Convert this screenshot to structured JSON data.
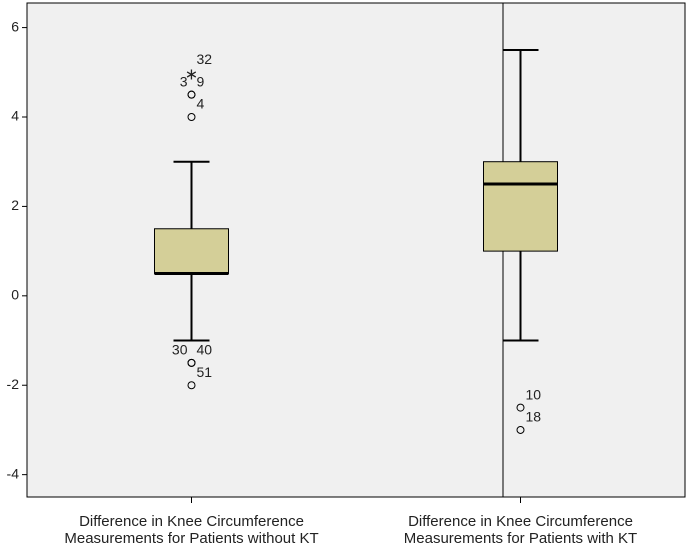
{
  "chart_data": {
    "type": "box",
    "categories": [
      [
        "Difference in Knee Circumference",
        "Measurements for Patients without KT"
      ],
      [
        "Difference in Knee Circumference",
        "Measurements for Patients with KT"
      ]
    ],
    "boxes": [
      {
        "whisker_low": -1,
        "q1": 0.5,
        "median": 0.5,
        "q3": 1.5,
        "whisker_high": 3,
        "outliers": [
          {
            "value": 5,
            "label": "32",
            "marker": "star"
          },
          {
            "value": 4.5,
            "label": "3",
            "marker": "circle"
          },
          {
            "value": 4.5,
            "label": "9",
            "marker": "circle"
          },
          {
            "value": 4,
            "label": "4",
            "marker": "circle"
          },
          {
            "value": -1.5,
            "label": "30",
            "marker": "circle"
          },
          {
            "value": -1.5,
            "label": "40",
            "marker": "circle"
          },
          {
            "value": -2,
            "label": "51",
            "marker": "circle"
          }
        ]
      },
      {
        "whisker_low": -1,
        "q1": 1,
        "median": 2.5,
        "q3": 3,
        "whisker_high": 5.5,
        "outliers": [
          {
            "value": -2.5,
            "label": "10",
            "marker": "circle"
          },
          {
            "value": -3,
            "label": "18",
            "marker": "circle"
          }
        ]
      }
    ],
    "color": "#d4cf98",
    "ylim": [
      -4.5,
      6.55
    ],
    "yticks": [
      -4,
      -2,
      0,
      2,
      4,
      6
    ]
  }
}
